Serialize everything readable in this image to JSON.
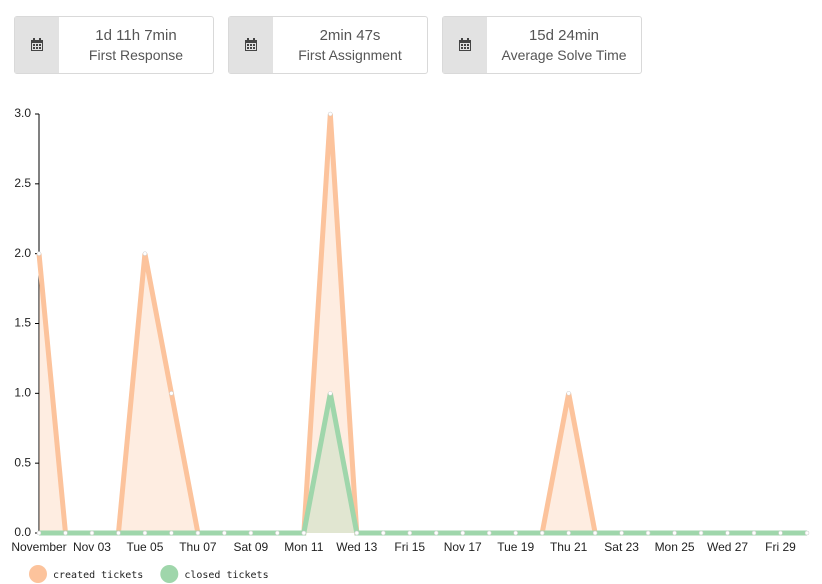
{
  "cards": [
    {
      "value": "1d 11h 7min",
      "label": "First Response"
    },
    {
      "value": "2min 47s",
      "label": "First Assignment"
    },
    {
      "value": "15d 24min",
      "label": "Average Solve Time"
    }
  ],
  "chart_data": {
    "type": "area",
    "categories": [
      "November",
      null,
      "Nov 03",
      null,
      "Tue 05",
      null,
      "Thu 07",
      null,
      "Sat 09",
      null,
      "Mon 11",
      null,
      "Wed 13",
      null,
      "Fri 15",
      null,
      "Nov 17",
      null,
      "Tue 19",
      null,
      "Thu 21",
      null,
      "Sat 23",
      null,
      "Mon 25",
      null,
      "Wed 27",
      null,
      "Fri 29",
      null
    ],
    "series": [
      {
        "name": "created tickets",
        "color": "#fcc39c",
        "values": [
          2,
          0,
          0,
          0,
          2,
          1,
          0,
          0,
          0,
          0,
          0,
          3,
          0,
          0,
          0,
          0,
          0,
          0,
          0,
          0,
          1,
          0,
          0,
          0,
          0,
          0,
          0,
          0,
          0,
          0
        ]
      },
      {
        "name": "closed tickets",
        "color": "#9fd6ab",
        "values": [
          0,
          0,
          0,
          0,
          0,
          0,
          0,
          0,
          0,
          0,
          0,
          1,
          0,
          0,
          0,
          0,
          0,
          0,
          0,
          0,
          0,
          0,
          0,
          0,
          0,
          0,
          0,
          0,
          0,
          0
        ]
      }
    ],
    "ylim": [
      0,
      3
    ],
    "yticks": [
      {
        "value": 0,
        "label": "0.0"
      },
      {
        "value": 0.5,
        "label": "0.5"
      },
      {
        "value": 1,
        "label": "1.0"
      },
      {
        "value": 1.5,
        "label": "1.5"
      },
      {
        "value": 2,
        "label": "2.0"
      },
      {
        "value": 2.5,
        "label": "2.5"
      },
      {
        "value": 3,
        "label": "3.0"
      }
    ],
    "legend": "bottom-left"
  }
}
